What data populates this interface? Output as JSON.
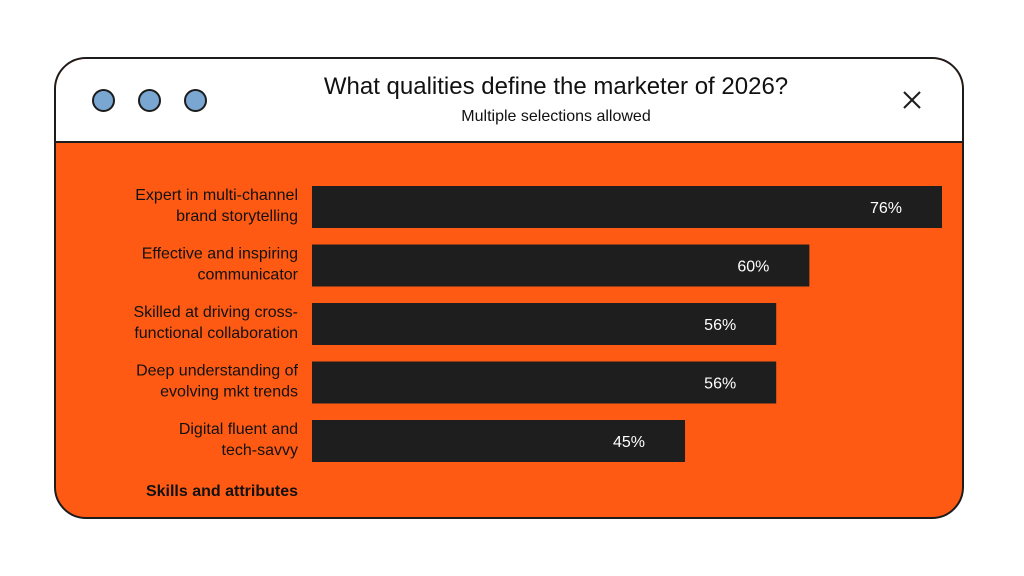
{
  "window": {
    "title": "What qualities define the marketer of 2026?",
    "subtitle": "Multiple selections allowed",
    "close_icon": "close-icon",
    "dot_color": "#7aa7d1"
  },
  "colors": {
    "background": "#ff5a14",
    "bar": "#1e1e1e",
    "bar_label": "#ffffff",
    "text": "#111111"
  },
  "chart_data": {
    "type": "bar",
    "orientation": "horizontal",
    "categories": [
      [
        "Expert in multi-channel",
        "brand storytelling"
      ],
      [
        "Effective and inspiring",
        "communicator"
      ],
      [
        "Skilled at driving cross-",
        "functional collaboration"
      ],
      [
        "Deep understanding of",
        "evolving mkt trends"
      ],
      [
        "Digital fluent and",
        "tech-savvy"
      ]
    ],
    "values": [
      76,
      60,
      56,
      56,
      45
    ],
    "value_labels": [
      "76%",
      "60%",
      "56%",
      "56%",
      "45%"
    ],
    "unit": "%",
    "xlim": [
      0,
      76
    ],
    "axis_label": "Skills and attributes",
    "grid": false,
    "legend": "none"
  }
}
